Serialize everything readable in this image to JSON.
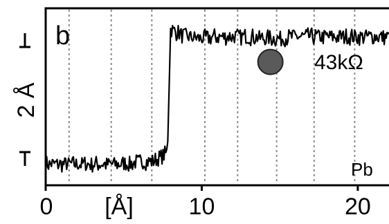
{
  "chart_data": {
    "type": "line",
    "panel_label": "b",
    "xlabel": "[Å]",
    "ylabel": "2 Å",
    "xlim": [
      0,
      22
    ],
    "ylim": [
      0,
      1
    ],
    "x_ticks": [
      0,
      10,
      20
    ],
    "x_tick_labels": [
      "0",
      "10",
      "20"
    ],
    "vgrid_x": [
      1.5,
      4.2,
      6.8,
      10.2,
      12.3,
      14.8,
      17.2,
      19.8
    ],
    "annotations": {
      "resistance": "43kΩ",
      "element": "Pb"
    },
    "marker": {
      "x": 14.4,
      "y": 0.697
    },
    "series": [
      {
        "x": [
          0,
          1,
          2,
          3,
          4,
          5,
          6,
          7,
          7.5,
          7.8,
          8,
          9,
          10,
          11,
          12,
          13,
          14,
          15,
          16,
          17,
          18,
          19,
          20,
          21,
          22
        ],
        "y": [
          0.12,
          0.12,
          0.12,
          0.12,
          0.12,
          0.12,
          0.13,
          0.14,
          0.16,
          0.19,
          0.88,
          0.84,
          0.83,
          0.84,
          0.84,
          0.84,
          0.83,
          0.83,
          0.84,
          0.84,
          0.84,
          0.84,
          0.84,
          0.84,
          0.84
        ],
        "noise": 0.05
      }
    ],
    "grid": "vertical-dotted",
    "colors": {
      "line": "#000000",
      "grid": "#8a8a8a",
      "marker": "#5a5a5a",
      "marker_edge": "#222222"
    }
  }
}
